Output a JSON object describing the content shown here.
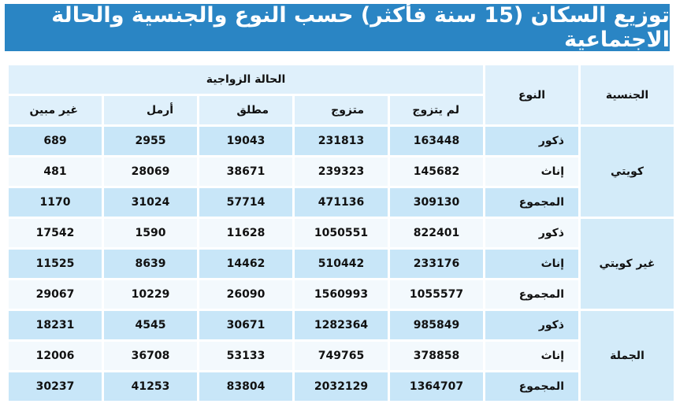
{
  "title": "توزيع السكان (15 سنة فأكثر) حسب النوع والجنسية والحالة الاجتماعية",
  "table": {
    "headers": {
      "nationality": "الجنسية",
      "gender": "النوع",
      "marital_status": "الحالة الزواجية",
      "statuses": [
        "لم يتزوج",
        "متزوج",
        "مطلق",
        "أرمل",
        "غير مبين"
      ]
    },
    "groups": [
      {
        "nationality": "كويتي",
        "rows": [
          {
            "gender": "ذكور",
            "values": [
              163448,
              231813,
              19043,
              2955,
              689
            ]
          },
          {
            "gender": "إناث",
            "values": [
              145682,
              239323,
              38671,
              28069,
              481
            ]
          },
          {
            "gender": "المجموع",
            "values": [
              309130,
              471136,
              57714,
              31024,
              1170
            ]
          }
        ]
      },
      {
        "nationality": "غير كويتي",
        "rows": [
          {
            "gender": "ذكور",
            "values": [
              822401,
              1050551,
              11628,
              1590,
              17542
            ]
          },
          {
            "gender": "إناث",
            "values": [
              233176,
              510442,
              14462,
              8639,
              11525
            ]
          },
          {
            "gender": "المجموع",
            "values": [
              1055577,
              1560993,
              26090,
              10229,
              29067
            ]
          }
        ]
      },
      {
        "nationality": "الجملة",
        "rows": [
          {
            "gender": "ذكور",
            "values": [
              985849,
              1282364,
              30671,
              4545,
              18231
            ]
          },
          {
            "gender": "إناث",
            "values": [
              378858,
              749765,
              53133,
              36708,
              12006
            ]
          },
          {
            "gender": "المجموع",
            "values": [
              1364707,
              2032129,
              83804,
              41253,
              30237
            ]
          }
        ]
      }
    ]
  }
}
